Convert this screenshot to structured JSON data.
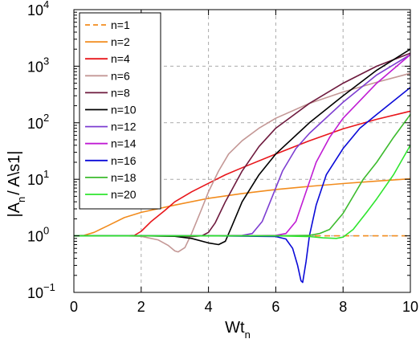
{
  "chart_data": {
    "type": "line",
    "xlabel": "Wt",
    "xlabel_sub": "n",
    "ylabel": "|A",
    "ylabel_sub": "n",
    "ylabel_tail": "/ A\\s1|",
    "xlim": [
      0,
      10
    ],
    "ylim": [
      0.1,
      10000
    ],
    "yscale": "log",
    "grid": true,
    "legend_position": "top-left",
    "x_ticks": [
      {
        "value": 0,
        "label": "0"
      },
      {
        "value": 2,
        "label": "2"
      },
      {
        "value": 4,
        "label": "4"
      },
      {
        "value": 6,
        "label": "6"
      },
      {
        "value": 8,
        "label": "8"
      },
      {
        "value": 10,
        "label": "10"
      }
    ],
    "y_ticks": [
      {
        "value": 0.1,
        "base": "10",
        "exp": "−1"
      },
      {
        "value": 1,
        "base": "10",
        "exp": "0"
      },
      {
        "value": 10,
        "base": "10",
        "exp": "1"
      },
      {
        "value": 100,
        "base": "10",
        "exp": "2"
      },
      {
        "value": 1000,
        "base": "10",
        "exp": "3"
      },
      {
        "value": 10000,
        "base": "10",
        "exp": "4"
      }
    ],
    "series": [
      {
        "name": "n=1",
        "color": "#f28c1e",
        "dash": true,
        "x": [
          0,
          2,
          4,
          6,
          8,
          10
        ],
        "y": [
          1,
          1,
          1,
          1,
          1,
          1
        ]
      },
      {
        "name": "n=2",
        "color": "#f28c1e",
        "dash": false,
        "x": [
          0,
          0.3,
          0.6,
          1,
          1.5,
          2,
          3,
          4,
          5,
          6,
          7,
          8,
          9,
          10
        ],
        "y": [
          1,
          1.02,
          1.15,
          1.5,
          2.1,
          2.6,
          3.5,
          4.6,
          5.6,
          6.6,
          7.5,
          8.4,
          9.3,
          10.2
        ]
      },
      {
        "name": "n=4",
        "color": "#e8161b",
        "dash": false,
        "x": [
          0,
          1,
          1.5,
          1.8,
          2.0,
          2.3,
          2.7,
          3.0,
          3.5,
          4.0,
          4.5,
          5,
          6,
          7,
          8,
          9,
          10
        ],
        "y": [
          1,
          1,
          1,
          1.02,
          1.2,
          1.8,
          2.8,
          4,
          6,
          8.5,
          12,
          16,
          28,
          48,
          78,
          115,
          160
        ]
      },
      {
        "name": "n=6",
        "color": "#c49896",
        "dash": false,
        "x": [
          0,
          1.5,
          2.0,
          2.5,
          2.8,
          3.0,
          3.1,
          3.3,
          3.5,
          3.8,
          4.0,
          4.3,
          4.6,
          5,
          5.5,
          6,
          7,
          8,
          9,
          10
        ],
        "y": [
          1,
          1,
          0.98,
          0.85,
          0.68,
          0.54,
          0.52,
          0.62,
          1.1,
          3,
          6,
          14,
          28,
          48,
          80,
          120,
          220,
          350,
          520,
          750
        ]
      },
      {
        "name": "n=8",
        "color": "#6e1a3e",
        "dash": false,
        "x": [
          0,
          2,
          3,
          3.5,
          3.8,
          4.0,
          4.2,
          4.5,
          5,
          5.5,
          6,
          7,
          8,
          9,
          10
        ],
        "y": [
          1,
          1,
          0.99,
          0.97,
          1,
          1.15,
          1.7,
          4,
          14,
          38,
          80,
          220,
          500,
          1000,
          1700
        ]
      },
      {
        "name": "n=10",
        "color": "#000000",
        "dash": false,
        "x": [
          0,
          2,
          3,
          3.5,
          4.0,
          4.3,
          4.5,
          4.7,
          5,
          5.5,
          6,
          7,
          8,
          9,
          10
        ],
        "y": [
          1,
          1,
          0.98,
          0.9,
          0.75,
          0.7,
          0.8,
          1.5,
          4,
          12,
          28,
          100,
          300,
          850,
          2000
        ]
      },
      {
        "name": "n=12",
        "color": "#7d3ed1",
        "dash": false,
        "x": [
          0,
          3,
          4,
          5,
          5.3,
          5.6,
          5.9,
          6.2,
          6.6,
          7,
          8,
          9,
          10
        ],
        "y": [
          1,
          1,
          1,
          1.02,
          1.1,
          1.8,
          5,
          14,
          35,
          65,
          230,
          700,
          1600
        ]
      },
      {
        "name": "n=14",
        "color": "#c01cd4",
        "dash": false,
        "x": [
          0,
          3,
          5,
          6,
          6.3,
          6.6,
          6.9,
          7.2,
          7.6,
          8,
          9,
          10
        ],
        "y": [
          1,
          1,
          1,
          1.02,
          1.1,
          1.8,
          6,
          20,
          55,
          120,
          500,
          1600
        ]
      },
      {
        "name": "n=16",
        "color": "#0a0ad8",
        "dash": false,
        "x": [
          0,
          4,
          6,
          6.3,
          6.5,
          6.65,
          6.75,
          6.8,
          6.9,
          7.0,
          7.2,
          7.5,
          8,
          8.5,
          9,
          10
        ],
        "y": [
          1,
          1,
          0.97,
          0.88,
          0.6,
          0.3,
          0.16,
          0.15,
          0.35,
          1,
          3.5,
          12,
          35,
          80,
          140,
          420
        ]
      },
      {
        "name": "n=18",
        "color": "#3dbb2e",
        "dash": false,
        "x": [
          0,
          4,
          6,
          7,
          7.3,
          7.6,
          8,
          8.3,
          8.6,
          9,
          9.5,
          10
        ],
        "y": [
          1,
          1,
          1,
          1.02,
          1.1,
          1.3,
          2.5,
          5,
          10,
          20,
          55,
          140
        ]
      },
      {
        "name": "n=20",
        "color": "#2ee52e",
        "dash": false,
        "x": [
          0,
          4,
          6,
          7,
          7.4,
          7.8,
          8.0,
          8.3,
          8.7,
          9,
          9.5,
          10
        ],
        "y": [
          1,
          1,
          1,
          0.97,
          0.92,
          0.9,
          0.95,
          1.3,
          2.6,
          4.5,
          12,
          40
        ]
      }
    ]
  }
}
